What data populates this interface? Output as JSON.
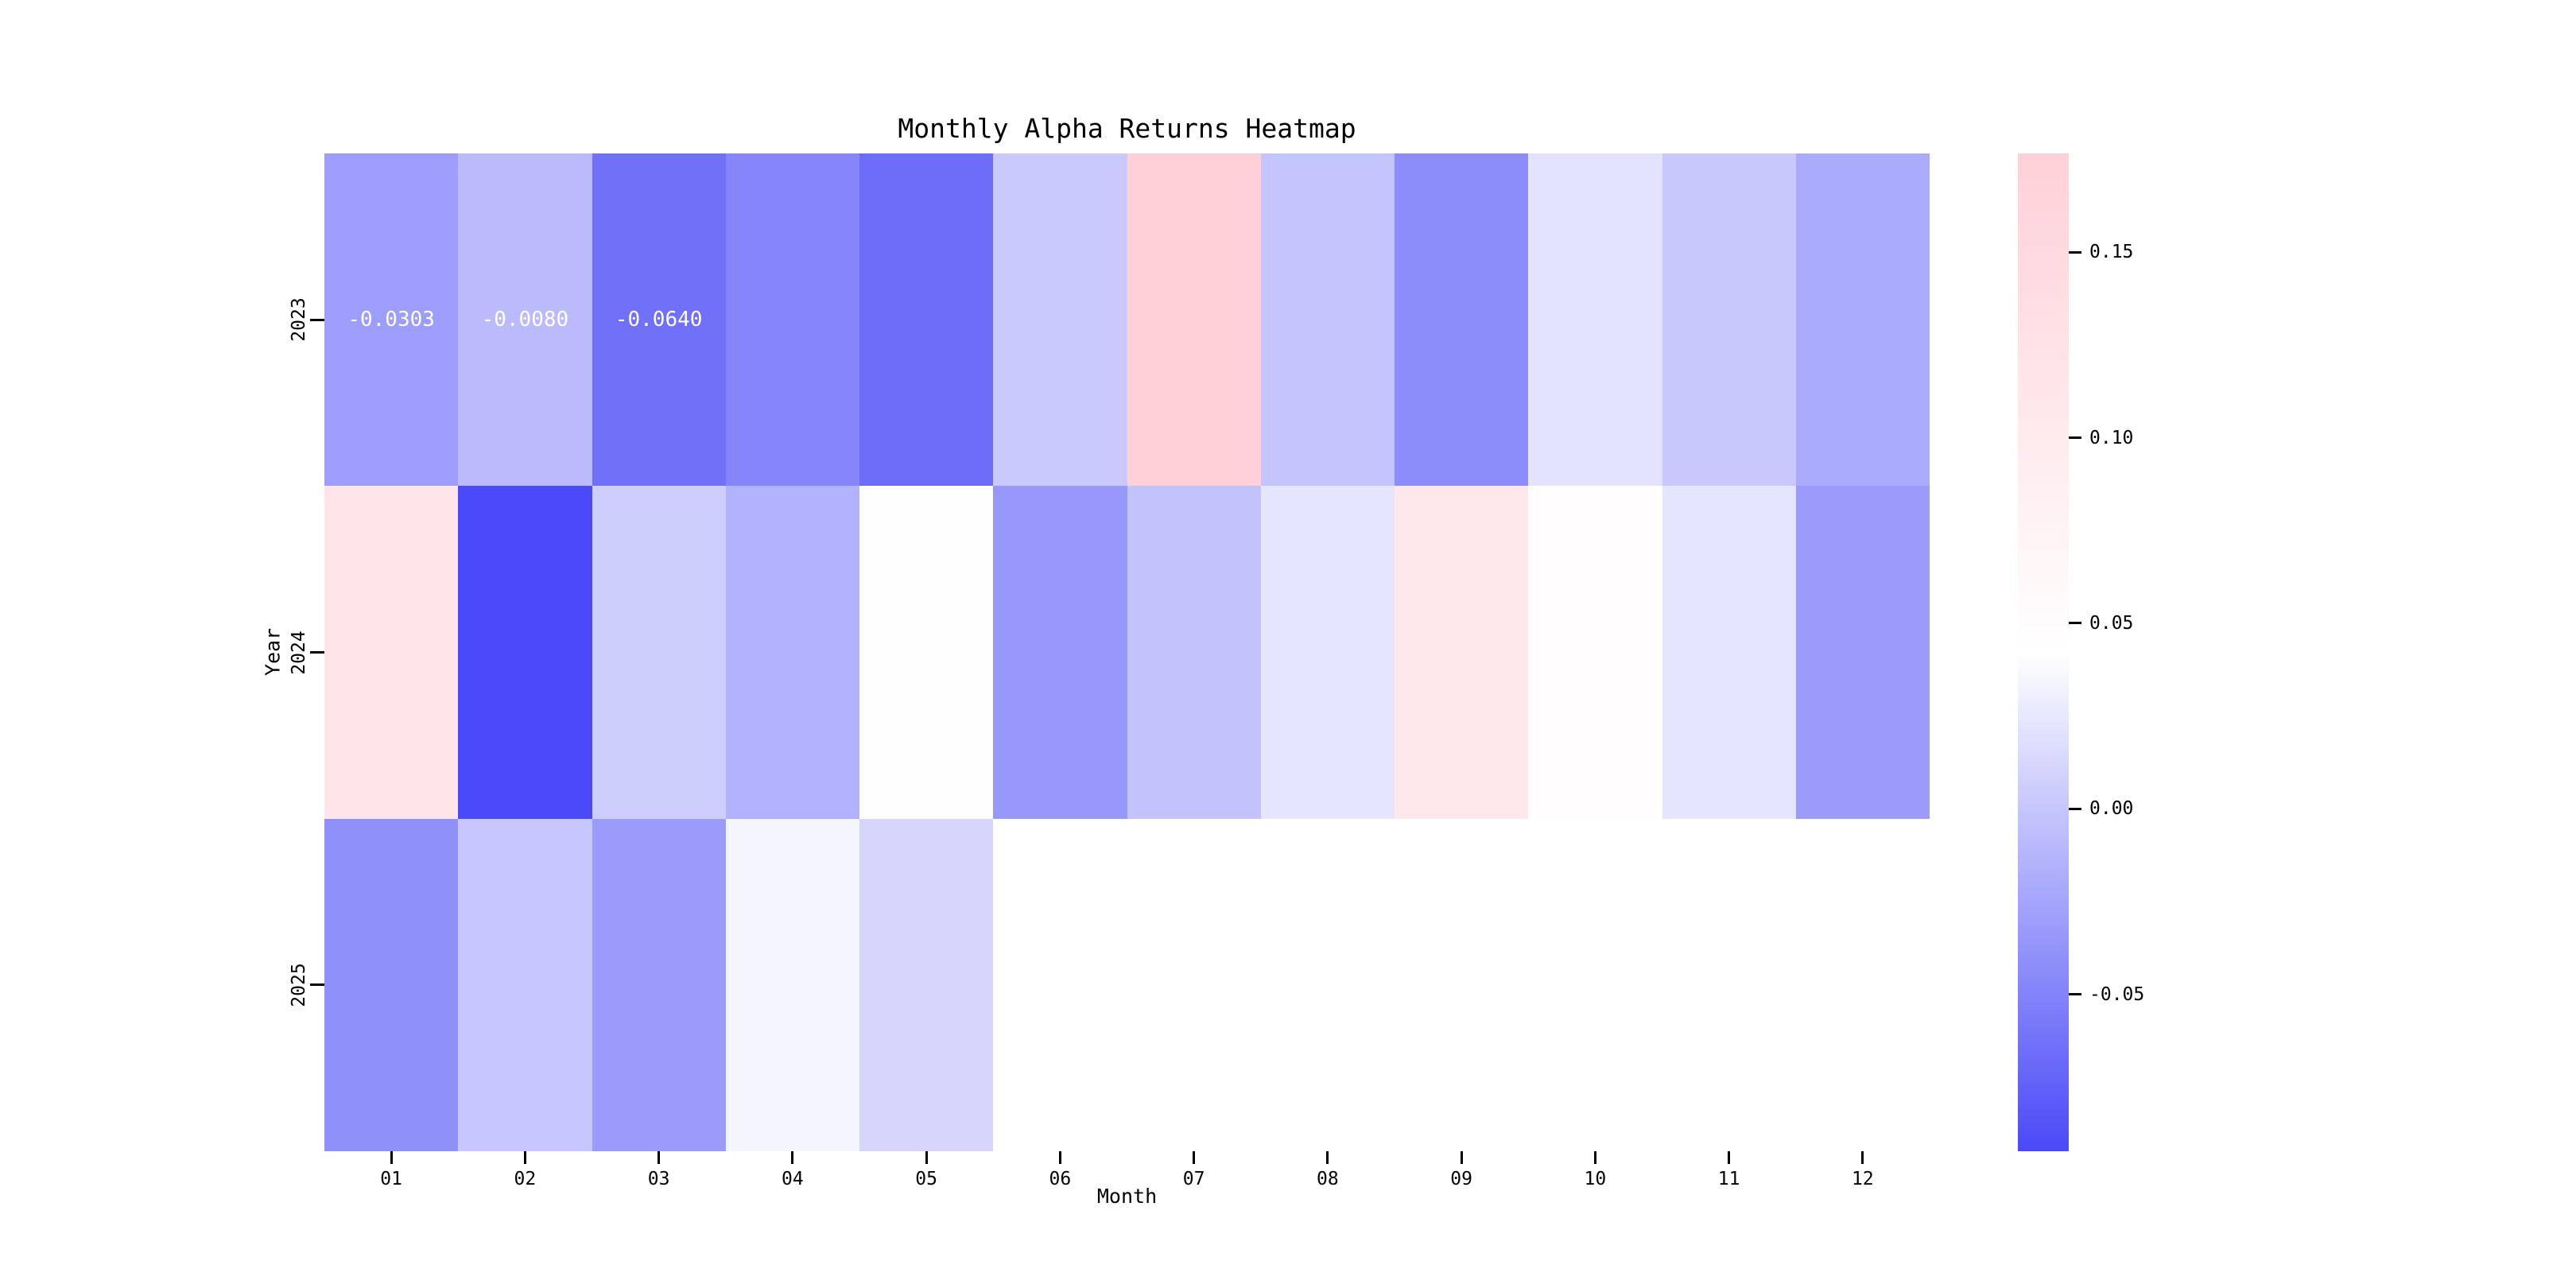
{
  "figure": {
    "background": "#ffffff"
  },
  "chart_data": {
    "type": "heatmap",
    "title": "Monthly Alpha Returns Heatmap",
    "xlabel": "Month",
    "ylabel": "Year",
    "x_labels": [
      "01",
      "02",
      "03",
      "04",
      "05",
      "06",
      "07",
      "08",
      "09",
      "10",
      "11",
      "12"
    ],
    "y_labels": [
      "2023",
      "2024",
      "2025"
    ],
    "values": [
      [
        -0.0303,
        -0.008,
        -0.064,
        -0.048,
        -0.066,
        0.002,
        0.177,
        -0.001,
        -0.043,
        0.021,
        0.001,
        -0.02
      ],
      [
        0.117,
        -0.092,
        0.006,
        -0.015,
        0.046,
        -0.034,
        -0.003,
        0.023,
        0.108,
        0.049,
        0.023,
        -0.032
      ],
      [
        -0.04,
        0.0,
        -0.032,
        0.035,
        0.012,
        null,
        null,
        null,
        null,
        null,
        null,
        null
      ]
    ],
    "annotations": [
      {
        "row": 0,
        "col": 0,
        "text": "-0.0303"
      },
      {
        "row": 0,
        "col": 1,
        "text": "-0.0080"
      },
      {
        "row": 0,
        "col": 2,
        "text": "-0.0640"
      }
    ],
    "annotation_text_color": "#ffffff",
    "colorbar": {
      "vmin": -0.0923,
      "vmax": 0.1766,
      "tick_values": [
        0.15,
        0.1,
        0.05,
        0.0,
        -0.05
      ],
      "tick_labels": [
        "0.15",
        "0.10",
        "0.05",
        "0.00",
        "-0.05"
      ],
      "color_low": "#4a4af8",
      "color_mid": "#ffffff",
      "color_high": "#ffd0d8"
    },
    "grid": false,
    "legend_position": "none"
  }
}
